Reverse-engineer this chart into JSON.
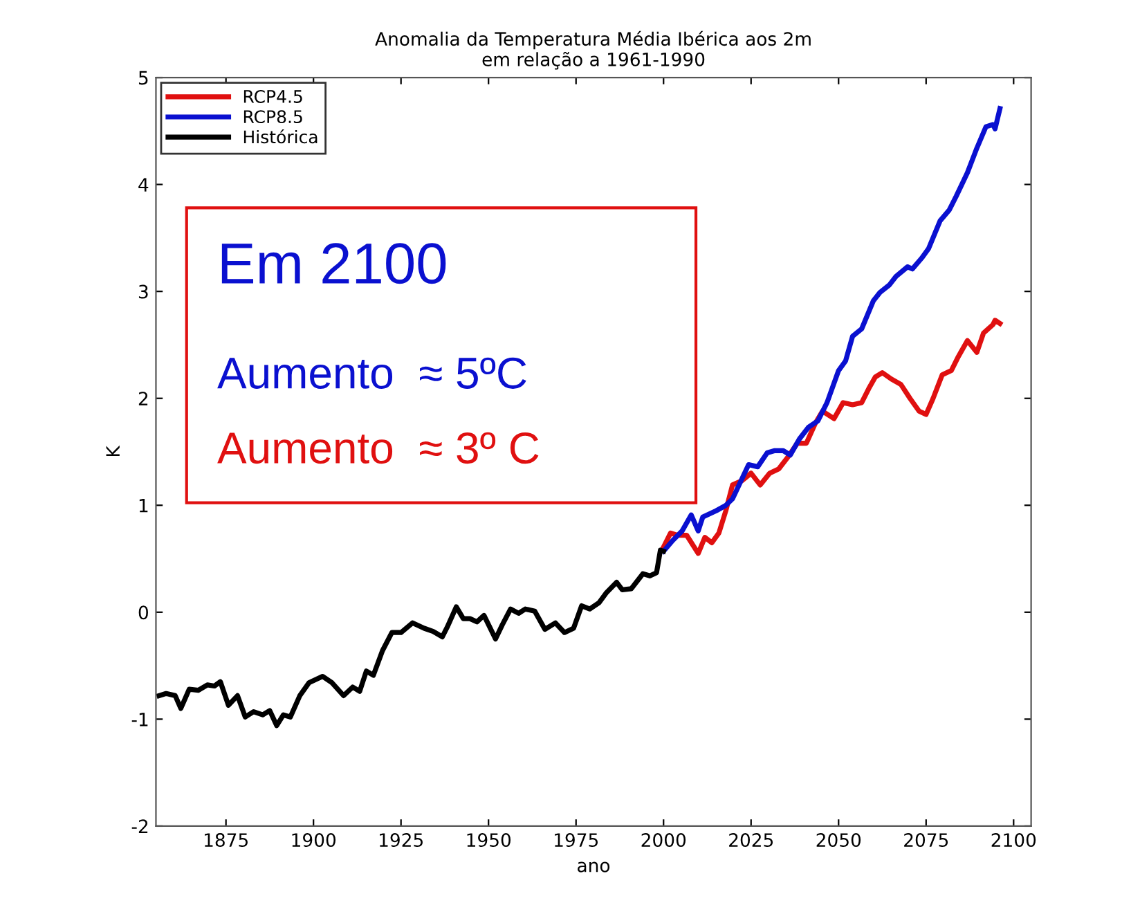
{
  "chart_data": {
    "type": "line",
    "title": "Anomalia da Temperatura Média Ibérica aos 2m\nem relação a 1961-1990",
    "xlabel": "ano",
    "ylabel": "K",
    "series": [
      {
        "name": "RCP4.5",
        "color": "#e01010",
        "x": [
          2000,
          2002,
          2003.9,
          2006.6,
          2009.9,
          2011.8,
          2013.8,
          2015.8,
          2017.8,
          2019.7,
          2022.4,
          2025,
          2027.6,
          2030.3,
          2032.9,
          2035.5,
          2038.2,
          2040.8,
          2043.4,
          2045.4,
          2048.7,
          2051.3,
          2054,
          2056.6,
          2058.6,
          2060.5,
          2062.5,
          2065.1,
          2067.8,
          2070.4,
          2073,
          2075,
          2077,
          2079.6,
          2082.2,
          2084.2,
          2086.8,
          2089.5,
          2091.4,
          2094.1,
          2094.7,
          2096.1
        ],
        "values": [
          0.61,
          0.74,
          0.72,
          0.72,
          0.55,
          0.7,
          0.65,
          0.74,
          0.95,
          1.19,
          1.23,
          1.3,
          1.19,
          1.3,
          1.34,
          1.45,
          1.58,
          1.58,
          1.77,
          1.88,
          1.81,
          1.96,
          1.94,
          1.96,
          2.09,
          2.2,
          2.24,
          2.18,
          2.13,
          2.0,
          1.88,
          1.85,
          2.0,
          2.22,
          2.26,
          2.39,
          2.54,
          2.43,
          2.61,
          2.69,
          2.73,
          2.7
        ]
      },
      {
        "name": "RCP8.5",
        "color": "#0a10d0",
        "x": [
          2000,
          2002.6,
          2005.3,
          2007.9,
          2009.9,
          2011.2,
          2015.1,
          2017.8,
          2019.7,
          2024.3,
          2026.9,
          2029.6,
          2031.6,
          2034.2,
          2036.2,
          2038.8,
          2041.4,
          2044.1,
          2046.7,
          2050,
          2052,
          2054,
          2056.6,
          2059.9,
          2061.8,
          2064.5,
          2066.4,
          2069.7,
          2071.1,
          2073.7,
          2075.7,
          2079,
          2081.6,
          2083.6,
          2086.8,
          2089.5,
          2092.1,
          2094.1,
          2094.7,
          2096.1
        ],
        "values": [
          0.57,
          0.67,
          0.76,
          0.91,
          0.76,
          0.89,
          0.95,
          1.0,
          1.06,
          1.38,
          1.36,
          1.49,
          1.51,
          1.51,
          1.47,
          1.62,
          1.73,
          1.79,
          1.96,
          2.26,
          2.35,
          2.58,
          2.65,
          2.91,
          2.99,
          3.06,
          3.14,
          3.23,
          3.21,
          3.31,
          3.4,
          3.66,
          3.76,
          3.89,
          4.11,
          4.34,
          4.54,
          4.56,
          4.52,
          4.71
        ]
      },
      {
        "name": "Histórica",
        "color": "#000000",
        "x": [
          1855.9,
          1857.9,
          1860.5,
          1862.1,
          1864.5,
          1867.1,
          1869.7,
          1871.7,
          1873.4,
          1875.7,
          1878.3,
          1880.5,
          1882.9,
          1885.5,
          1887.5,
          1889.5,
          1891.4,
          1893.4,
          1896.1,
          1898.7,
          1902.6,
          1905.3,
          1908.6,
          1911.2,
          1913.2,
          1915.1,
          1917.1,
          1919.7,
          1922.4,
          1925,
          1928.3,
          1931.6,
          1934.2,
          1936.8,
          1938.2,
          1940.8,
          1942.8,
          1944.7,
          1946.7,
          1948.7,
          1952,
          1953.9,
          1956.3,
          1958.6,
          1960.5,
          1963.2,
          1966.1,
          1969.1,
          1971.7,
          1974.3,
          1976.6,
          1978.9,
          1981.6,
          1983.6,
          1986.6,
          1988.2,
          1990.8,
          1994.1,
          1996.1,
          1998,
          1999.1,
          2000
        ],
        "values": [
          -0.78,
          -0.76,
          -0.78,
          -0.9,
          -0.72,
          -0.73,
          -0.68,
          -0.69,
          -0.65,
          -0.87,
          -0.78,
          -0.98,
          -0.93,
          -0.96,
          -0.92,
          -1.06,
          -0.96,
          -0.98,
          -0.78,
          -0.66,
          -0.6,
          -0.66,
          -0.78,
          -0.7,
          -0.74,
          -0.55,
          -0.59,
          -0.36,
          -0.19,
          -0.19,
          -0.1,
          -0.15,
          -0.18,
          -0.23,
          -0.14,
          0.05,
          -0.06,
          -0.06,
          -0.09,
          -0.03,
          -0.25,
          -0.12,
          0.03,
          -0.01,
          0.03,
          0.01,
          -0.16,
          -0.1,
          -0.19,
          -0.15,
          0.06,
          0.03,
          0.09,
          0.18,
          0.28,
          0.21,
          0.22,
          0.36,
          0.34,
          0.37,
          0.58,
          0.57
        ]
      }
    ],
    "xlim": [
      1855,
      2105
    ],
    "xticks": [
      1875,
      1900,
      1925,
      1950,
      1975,
      2000,
      2025,
      2050,
      2075,
      2100
    ],
    "ylim": [
      -2,
      5
    ],
    "yticks": [
      -2,
      -1,
      0,
      1,
      2,
      3,
      4,
      5
    ],
    "grid": false,
    "legend": "top left",
    "marker": "none",
    "line_style": "solid",
    "annotations": [
      "Em 2100",
      "Aumento  ≈ 5ºC",
      "Aumento  ≈ 3º C"
    ]
  }
}
